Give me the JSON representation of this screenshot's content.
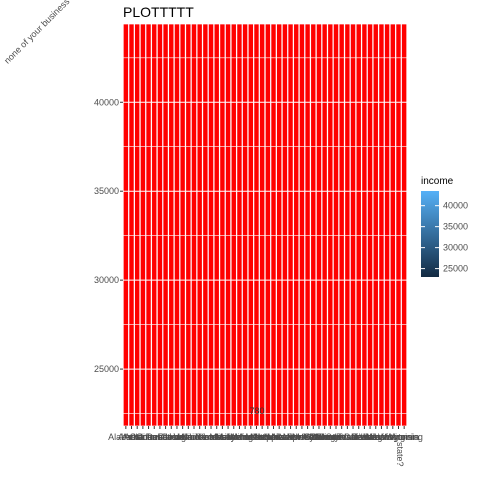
{
  "chart_data": {
    "type": "bar",
    "title": "PLOTTTTT",
    "ylabel": "none of your business",
    "xlabel": "state?",
    "ylim": [
      21800,
      44400
    ],
    "yticks": [
      25000,
      30000,
      35000,
      40000
    ],
    "categories": [
      "Alabama",
      "Alaska",
      "Arizona",
      "Arkansas",
      "California",
      "Colorado",
      "Connecticut",
      "Delaware",
      "Florida",
      "Georgia",
      "Hawaii",
      "Idaho",
      "Illinois",
      "Indiana",
      "Iowa",
      "Kansas",
      "Kentucky",
      "Louisiana",
      "Maine",
      "Maryland",
      "Massachusetts",
      "Michigan",
      "Minnesota",
      "Mississippi",
      "Missouri",
      "Montana",
      "Nebraska",
      "Nevada",
      "New Hampshire",
      "New Jersey",
      "New Mexico",
      "New York",
      "North Carolina",
      "North Dakota",
      "Ohio",
      "Oklahoma",
      "Oregon",
      "Pennsylvania",
      "Rhode Island",
      "South Carolina",
      "South Dakota",
      "Tennessee",
      "Texas",
      "Utah",
      "Vermont",
      "Virginia",
      "Washington",
      "West Virginia",
      "Wisconsin",
      "Wyoming"
    ],
    "values": [
      44400,
      44400,
      44400,
      44400,
      44400,
      44400,
      44400,
      44400,
      44400,
      44400,
      44400,
      44400,
      44400,
      44400,
      44400,
      44400,
      44400,
      44400,
      44400,
      44400,
      44400,
      44400,
      44400,
      44400,
      44400,
      44400,
      44400,
      44400,
      44400,
      44400,
      44400,
      44400,
      44400,
      44400,
      44400,
      44400,
      44400,
      44400,
      44400,
      44400,
      44400,
      44400,
      44400,
      44400,
      44400,
      44400,
      44400,
      44400,
      44400,
      44400
    ],
    "bar_fill": "#ff0000",
    "bar_outline": "#ffffff",
    "panel_border": "#cc00cc",
    "annotation": "780",
    "legend": {
      "title": "income",
      "position": "right",
      "ticks": [
        25000,
        30000,
        35000,
        40000
      ],
      "range": [
        23000,
        43500
      ],
      "color_low": "#132b43",
      "color_high": "#56b1f7"
    },
    "grid": true
  }
}
